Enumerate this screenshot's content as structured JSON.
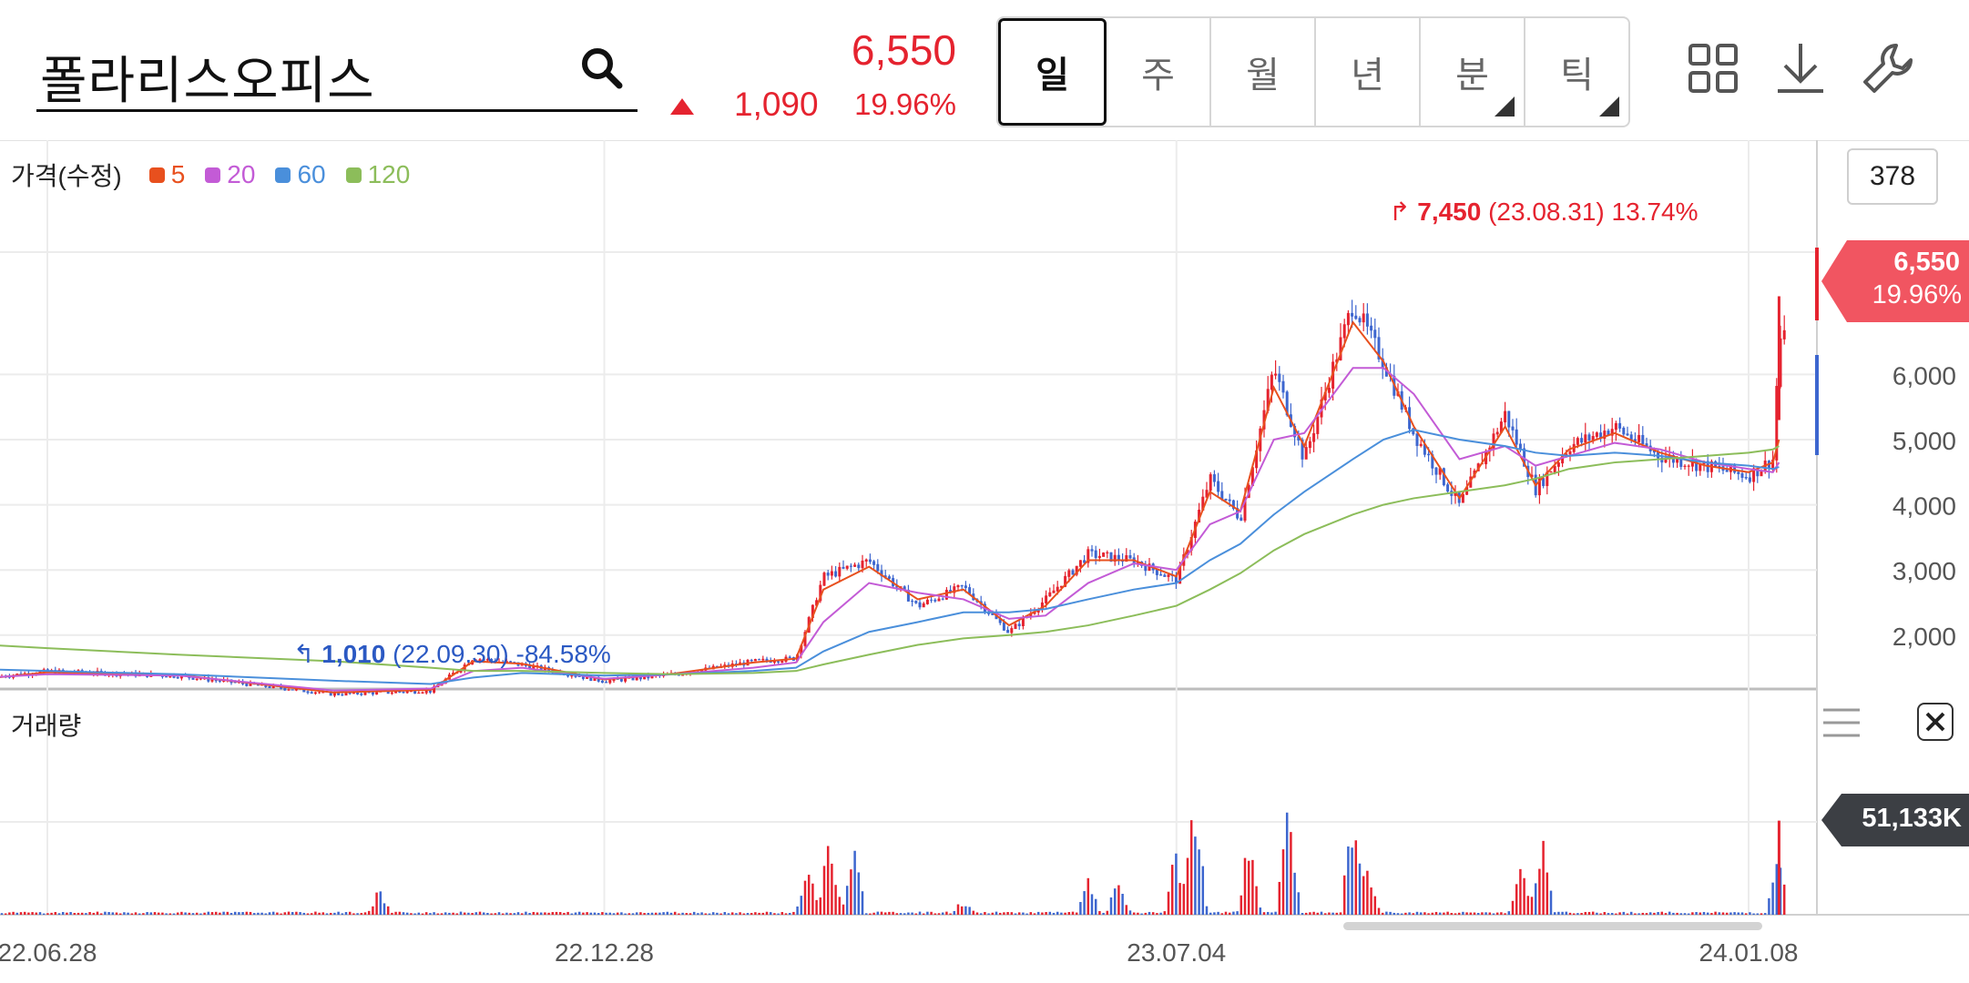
{
  "header": {
    "stock_name": "폴라리스오피스",
    "price": "6,550",
    "change_abs": "1,090",
    "change_pct": "19.96%",
    "tabs": [
      {
        "label": "일",
        "active": true,
        "has_corner": false
      },
      {
        "label": "주",
        "active": false,
        "has_corner": false
      },
      {
        "label": "월",
        "active": false,
        "has_corner": false
      },
      {
        "label": "년",
        "active": false,
        "has_corner": false
      },
      {
        "label": "분",
        "active": false,
        "has_corner": true
      },
      {
        "label": "틱",
        "active": false,
        "has_corner": true
      }
    ],
    "icons": [
      "search-icon",
      "grid-layout-icon",
      "download-icon",
      "wrench-icon"
    ]
  },
  "chart": {
    "zoom_count": "378",
    "legend_title": "가격(수정)",
    "legend": [
      {
        "label": "5",
        "color": "#e8501e"
      },
      {
        "label": "20",
        "color": "#c35bd6"
      },
      {
        "label": "60",
        "color": "#4a8fdb"
      },
      {
        "label": "120",
        "color": "#8cbd5a"
      }
    ],
    "high": {
      "price": "7,450",
      "date": "(23.08.31)",
      "pct": "13.74%"
    },
    "low": {
      "price": "1,010",
      "date": "(22.09.30)",
      "pct": "-84.58%"
    },
    "current_tag": {
      "price": "6,550",
      "pct": "19.96%"
    },
    "volume_label": "거래량",
    "volume_tag": "51,133K",
    "colors": {
      "up": "#e5232f",
      "down": "#3d66cf",
      "ma5": "#e8501e",
      "ma20": "#c35bd6",
      "ma60": "#4a8fdb",
      "ma120": "#8cbd5a"
    }
  },
  "chart_data": {
    "type": "line",
    "x_ticks": [
      "22.06.28",
      "22.12.28",
      "23.07.04",
      "24.01.08"
    ],
    "y_ticks": [
      "2,000",
      "3,000",
      "4,000",
      "5,000",
      "6,000"
    ],
    "ylim": [
      0,
      7800
    ],
    "price_series": {
      "x": [
        "22.05.20",
        "22.06.28",
        "22.08.10",
        "22.09.30",
        "22.11.01",
        "22.11.15",
        "22.12.01",
        "22.12.28",
        "23.01.20",
        "23.02.15",
        "23.03.01",
        "23.03.10",
        "23.03.25",
        "23.04.10",
        "23.04.25",
        "23.05.10",
        "23.05.22",
        "23.06.05",
        "23.06.20",
        "23.07.04",
        "23.07.15",
        "23.07.25",
        "23.08.05",
        "23.08.15",
        "23.08.31",
        "23.09.10",
        "23.09.20",
        "23.10.05",
        "23.10.20",
        "23.10.30",
        "23.11.10",
        "23.11.25",
        "23.12.10",
        "23.12.25",
        "24.01.08",
        "24.01.16",
        "24.01.18"
      ],
      "close": [
        1250,
        1450,
        1380,
        1100,
        1150,
        1650,
        1550,
        1300,
        1400,
        1600,
        1650,
        2900,
        3150,
        2450,
        2750,
        2050,
        2550,
        3250,
        3150,
        2850,
        4400,
        3800,
        6100,
        4700,
        7100,
        6200,
        5100,
        4000,
        5400,
        4250,
        4900,
        5200,
        4750,
        4600,
        4450,
        4700,
        6550
      ]
    },
    "ma_series": [
      {
        "name": "5",
        "values": [
          1240,
          1430,
          1390,
          1120,
          1160,
          1600,
          1560,
          1320,
          1410,
          1580,
          1640,
          2700,
          3050,
          2550,
          2700,
          2150,
          2450,
          3150,
          3150,
          2900,
          4200,
          3900,
          5800,
          4900,
          6800,
          6200,
          5200,
          4100,
          5200,
          4300,
          4850,
          5100,
          4800,
          4600,
          4500,
          4650,
          5000
        ]
      },
      {
        "name": "20",
        "values": [
          1300,
          1400,
          1380,
          1150,
          1180,
          1450,
          1500,
          1330,
          1400,
          1500,
          1580,
          2200,
          2800,
          2650,
          2550,
          2250,
          2300,
          2800,
          3100,
          3000,
          3700,
          3900,
          5000,
          5100,
          6100,
          6100,
          5700,
          4700,
          4900,
          4600,
          4750,
          4950,
          4850,
          4650,
          4550,
          4500,
          4650
        ]
      },
      {
        "name": "60",
        "values": [
          1500,
          1450,
          1400,
          1300,
          1250,
          1350,
          1420,
          1380,
          1400,
          1450,
          1500,
          1750,
          2050,
          2200,
          2350,
          2350,
          2400,
          2550,
          2700,
          2800,
          3150,
          3400,
          3850,
          4200,
          4700,
          5000,
          5150,
          5000,
          4900,
          4800,
          4750,
          4800,
          4750,
          4650,
          4600,
          4550,
          4580
        ]
      },
      {
        "name": "120",
        "values": [
          1900,
          1800,
          1700,
          1600,
          1500,
          1450,
          1450,
          1420,
          1400,
          1420,
          1450,
          1550,
          1700,
          1850,
          1950,
          2000,
          2050,
          2150,
          2300,
          2450,
          2700,
          2950,
          3300,
          3550,
          3850,
          4000,
          4100,
          4200,
          4300,
          4400,
          4550,
          4650,
          4700,
          4750,
          4800,
          4850,
          4900
        ]
      }
    ],
    "volume": {
      "x": [
        "22.10.15",
        "23.03.05",
        "23.03.12",
        "23.03.20",
        "23.04.25",
        "23.06.05",
        "23.06.15",
        "23.07.04",
        "23.07.10",
        "23.07.28",
        "23.08.10",
        "23.08.31",
        "23.09.05",
        "23.10.25",
        "23.11.01",
        "24.01.18"
      ],
      "values": [
        2000,
        4500,
        6000,
        5500,
        1200,
        2500,
        3000,
        5000,
        9800,
        5800,
        9000,
        7800,
        4000,
        3600,
        6000,
        5113
      ]
    }
  }
}
